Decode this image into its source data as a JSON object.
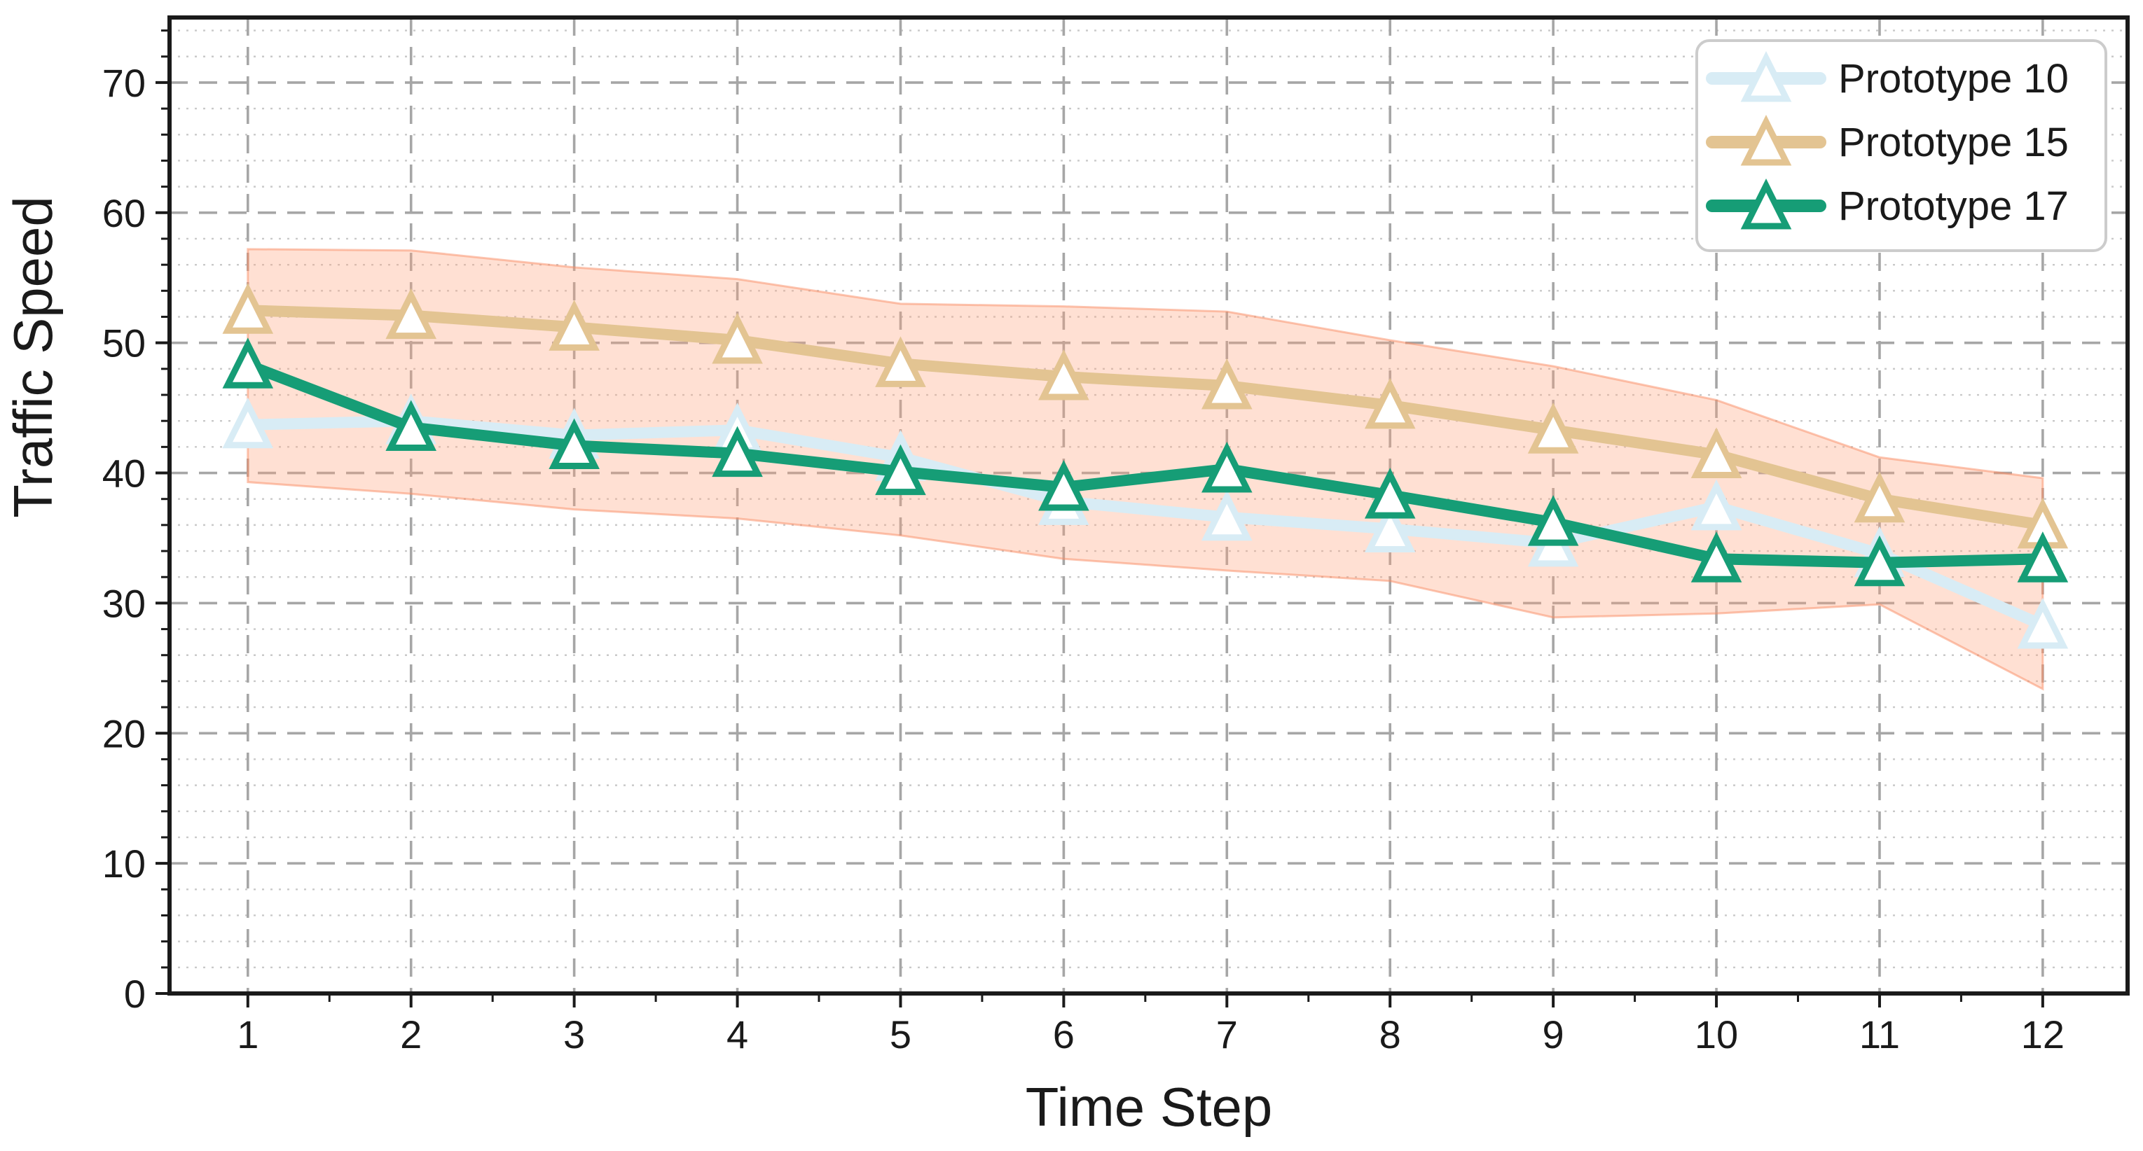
{
  "chart_data": {
    "type": "line",
    "title": "",
    "xlabel": "Time Step",
    "ylabel": "Traffic Speed",
    "x": [
      1,
      2,
      3,
      4,
      5,
      6,
      7,
      8,
      9,
      10,
      11,
      12
    ],
    "xticks": [
      1,
      2,
      3,
      4,
      5,
      6,
      7,
      8,
      9,
      10,
      11,
      12
    ],
    "yticks": [
      0,
      10,
      20,
      30,
      40,
      50,
      60,
      70
    ],
    "xlim": [
      0.52,
      12.52
    ],
    "ylim": [
      0,
      75
    ],
    "y_minor_step": 2,
    "x_minor_step": 0.5,
    "grid": true,
    "legend_position": "upper right",
    "marker": "triangle-up",
    "series": [
      {
        "name": "Prototype 10",
        "color": "#d8ecf5",
        "values": [
          43.7,
          44.0,
          42.9,
          43.3,
          41.2,
          37.8,
          36.6,
          35.7,
          34.6,
          37.4,
          33.8,
          28.3
        ]
      },
      {
        "name": "Prototype 15",
        "color": "#e3c492",
        "values": [
          52.5,
          52.1,
          51.2,
          50.2,
          48.4,
          47.4,
          46.7,
          45.2,
          43.3,
          41.4,
          38.0,
          36.0
        ],
        "band": {
          "upper": [
            57.2,
            57.1,
            55.8,
            54.9,
            53.0,
            52.8,
            52.4,
            50.2,
            48.2,
            45.6,
            41.2,
            39.6
          ],
          "lower": [
            39.3,
            38.4,
            37.2,
            36.5,
            35.2,
            33.4,
            32.5,
            31.7,
            28.9,
            29.2,
            29.9,
            23.4
          ],
          "fill": "rgba(255,160,122,0.33)",
          "edge": "rgba(250,140,100,0.5)"
        }
      },
      {
        "name": "Prototype 17",
        "color": "#169d76",
        "values": [
          48.3,
          43.5,
          42.1,
          41.5,
          40.1,
          38.9,
          40.3,
          38.3,
          36.2,
          33.4,
          33.1,
          33.4
        ]
      }
    ],
    "style": {
      "grid_major_color": "#a6a6a6",
      "grid_minor_color": "#c9c9c9",
      "frame_color": "#1a1a1a",
      "marker_face": "#ffffff",
      "legend_border": "#cccccc"
    }
  }
}
